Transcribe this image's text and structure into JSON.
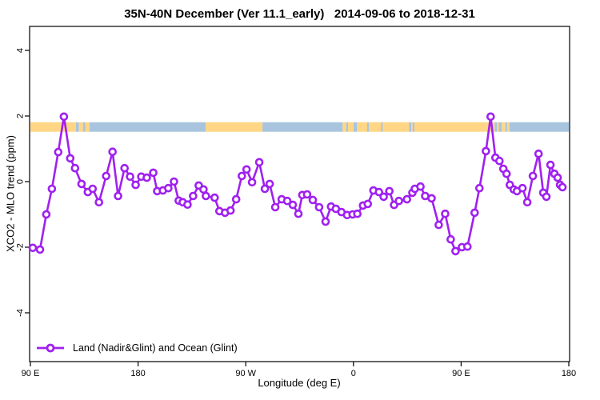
{
  "figure": {
    "title": "35N-40N December (Ver 11.1_early)   2014-09-06 to 2018-12-31",
    "xlabel": "Longitude (deg E)",
    "ylabel": "XCO2 - MLO trend (ppm)",
    "legend_label": "Land (Nadir&Glint) and Ocean (Glint)"
  },
  "colors": {
    "line": "#A020F0",
    "marker_fill": "#FFFFFF",
    "land_band": "#FFD685",
    "ocean_band": "#A9C4DF",
    "axis": "#000000"
  },
  "chart_data": {
    "type": "line",
    "title": "35N-40N December (Ver 11.1_early)   2014-09-06 to 2018-12-31",
    "xlabel": "Longitude (deg E)",
    "ylabel": "XCO2 - MLO trend (ppm)",
    "xlim": [
      90,
      540
    ],
    "ylim": [
      -5.5,
      4.75
    ],
    "grid": false,
    "legend_position": "bottom-left-inside",
    "x_ticks": [
      {
        "value": 90,
        "label": "90 E"
      },
      {
        "value": 180,
        "label": "180"
      },
      {
        "value": 270,
        "label": "90 W"
      },
      {
        "value": 360,
        "label": "0"
      },
      {
        "value": 450,
        "label": "90 E"
      },
      {
        "value": 540,
        "label": "180"
      }
    ],
    "y_ticks": [
      {
        "value": 4,
        "label": "4"
      },
      {
        "value": 2,
        "label": "2"
      },
      {
        "value": 0,
        "label": "0"
      },
      {
        "value": -2,
        "label": "-2"
      },
      {
        "value": -4,
        "label": "-4"
      }
    ],
    "band": {
      "description": "surface type strip (land=orange, ocean=blue) along longitude",
      "y_range": [
        1.52,
        1.81
      ],
      "colors": {
        "land": "#FFD685",
        "ocean": "#A9C4DF"
      },
      "segments": [
        {
          "surface": "land",
          "from": 90,
          "to": 128
        },
        {
          "surface": "ocean",
          "from": 128,
          "to": 130.5
        },
        {
          "surface": "land",
          "from": 130.5,
          "to": 134
        },
        {
          "surface": "ocean",
          "from": 134,
          "to": 136
        },
        {
          "surface": "land",
          "from": 136,
          "to": 139.5
        },
        {
          "surface": "ocean",
          "from": 139.5,
          "to": 236.5
        },
        {
          "surface": "land",
          "from": 236.5,
          "to": 284
        },
        {
          "surface": "ocean",
          "from": 284,
          "to": 351
        },
        {
          "surface": "land",
          "from": 351,
          "to": 354
        },
        {
          "surface": "ocean",
          "from": 354,
          "to": 355.5
        },
        {
          "surface": "land",
          "from": 355.5,
          "to": 360
        },
        {
          "surface": "ocean",
          "from": 360,
          "to": 363
        },
        {
          "surface": "land",
          "from": 363,
          "to": 371.5
        },
        {
          "surface": "ocean",
          "from": 371.5,
          "to": 373
        },
        {
          "surface": "land",
          "from": 373,
          "to": 383
        },
        {
          "surface": "ocean",
          "from": 383,
          "to": 384.5
        },
        {
          "surface": "land",
          "from": 384.5,
          "to": 406.5
        },
        {
          "surface": "ocean",
          "from": 406.5,
          "to": 408.5
        },
        {
          "surface": "land",
          "from": 408.5,
          "to": 409.5
        },
        {
          "surface": "ocean",
          "from": 409.5,
          "to": 411
        },
        {
          "surface": "land",
          "from": 411,
          "to": 478
        },
        {
          "surface": "ocean",
          "from": 478,
          "to": 480
        },
        {
          "surface": "land",
          "from": 480,
          "to": 481.5
        },
        {
          "surface": "ocean",
          "from": 481.5,
          "to": 484
        },
        {
          "surface": "land",
          "from": 484,
          "to": 487
        },
        {
          "surface": "ocean",
          "from": 487,
          "to": 488.5
        },
        {
          "surface": "land",
          "from": 488.5,
          "to": 490.5
        },
        {
          "surface": "ocean",
          "from": 490.5,
          "to": 540
        }
      ]
    },
    "series": [
      {
        "name": "Land (Nadir&Glint) and Ocean (Glint)",
        "marker": "open-circle",
        "color": "#A020F0",
        "points": [
          [
            92,
            -2.02
          ],
          [
            98,
            -2.07
          ],
          [
            103.3,
            -1.0
          ],
          [
            108,
            -0.22
          ],
          [
            113.3,
            0.9
          ],
          [
            118,
            1.98
          ],
          [
            123.3,
            0.71
          ],
          [
            127.3,
            0.41
          ],
          [
            132.7,
            -0.07
          ],
          [
            138,
            -0.32
          ],
          [
            142,
            -0.22
          ],
          [
            147.3,
            -0.63
          ],
          [
            153.3,
            0.17
          ],
          [
            158.7,
            0.91
          ],
          [
            163.3,
            -0.44
          ],
          [
            168.7,
            0.41
          ],
          [
            173.3,
            0.15
          ],
          [
            178,
            -0.1
          ],
          [
            182.7,
            0.15
          ],
          [
            187.3,
            0.12
          ],
          [
            192.7,
            0.27
          ],
          [
            196,
            -0.29
          ],
          [
            200.7,
            -0.27
          ],
          [
            205.3,
            -0.2
          ],
          [
            210,
            0.0
          ],
          [
            214,
            -0.58
          ],
          [
            217.3,
            -0.63
          ],
          [
            221.3,
            -0.7
          ],
          [
            226,
            -0.44
          ],
          [
            230.7,
            -0.12
          ],
          [
            234.7,
            -0.24
          ],
          [
            236.7,
            -0.44
          ],
          [
            244,
            -0.49
          ],
          [
            248,
            -0.9
          ],
          [
            252.7,
            -0.95
          ],
          [
            257.3,
            -0.88
          ],
          [
            262,
            -0.54
          ],
          [
            266.7,
            0.17
          ],
          [
            270.7,
            0.37
          ],
          [
            275.3,
            -0.02
          ],
          [
            281.3,
            0.59
          ],
          [
            286,
            -0.22
          ],
          [
            290,
            -0.07
          ],
          [
            294.7,
            -0.78
          ],
          [
            300,
            -0.54
          ],
          [
            304.7,
            -0.59
          ],
          [
            309.3,
            -0.71
          ],
          [
            314,
            -0.98
          ],
          [
            317.3,
            -0.41
          ],
          [
            321.3,
            -0.39
          ],
          [
            326,
            -0.56
          ],
          [
            331.3,
            -0.78
          ],
          [
            336.7,
            -1.22
          ],
          [
            341.3,
            -0.76
          ],
          [
            345.3,
            -0.83
          ],
          [
            350,
            -0.93
          ],
          [
            354.7,
            -1.02
          ],
          [
            359.3,
            -1.0
          ],
          [
            363.3,
            -0.98
          ],
          [
            368,
            -0.73
          ],
          [
            372,
            -0.68
          ],
          [
            376.7,
            -0.27
          ],
          [
            381.3,
            -0.32
          ],
          [
            385.3,
            -0.46
          ],
          [
            390,
            -0.29
          ],
          [
            394,
            -0.71
          ],
          [
            398,
            -0.59
          ],
          [
            404.7,
            -0.54
          ],
          [
            409.3,
            -0.34
          ],
          [
            411.3,
            -0.22
          ],
          [
            416,
            -0.15
          ],
          [
            420,
            -0.44
          ],
          [
            425.3,
            -0.51
          ],
          [
            431.3,
            -1.32
          ],
          [
            436.7,
            -0.98
          ],
          [
            441.3,
            -1.76
          ],
          [
            445.3,
            -2.12
          ],
          [
            450.7,
            -2.0
          ],
          [
            455.3,
            -1.98
          ],
          [
            461.3,
            -0.95
          ],
          [
            465.3,
            -0.2
          ],
          [
            470.7,
            0.93
          ],
          [
            474.7,
            1.98
          ],
          [
            478.7,
            0.73
          ],
          [
            482,
            0.63
          ],
          [
            485.3,
            0.39
          ],
          [
            488,
            0.24
          ],
          [
            490.7,
            -0.1
          ],
          [
            494,
            -0.24
          ],
          [
            496.7,
            -0.29
          ],
          [
            501.3,
            -0.2
          ],
          [
            505.3,
            -0.63
          ],
          [
            510,
            0.17
          ],
          [
            514.7,
            0.85
          ],
          [
            518.7,
            -0.34
          ],
          [
            521.3,
            -0.46
          ],
          [
            524.7,
            0.51
          ],
          [
            528,
            0.24
          ],
          [
            530.7,
            0.12
          ],
          [
            532.7,
            -0.1
          ],
          [
            534.7,
            -0.17
          ]
        ]
      }
    ]
  }
}
